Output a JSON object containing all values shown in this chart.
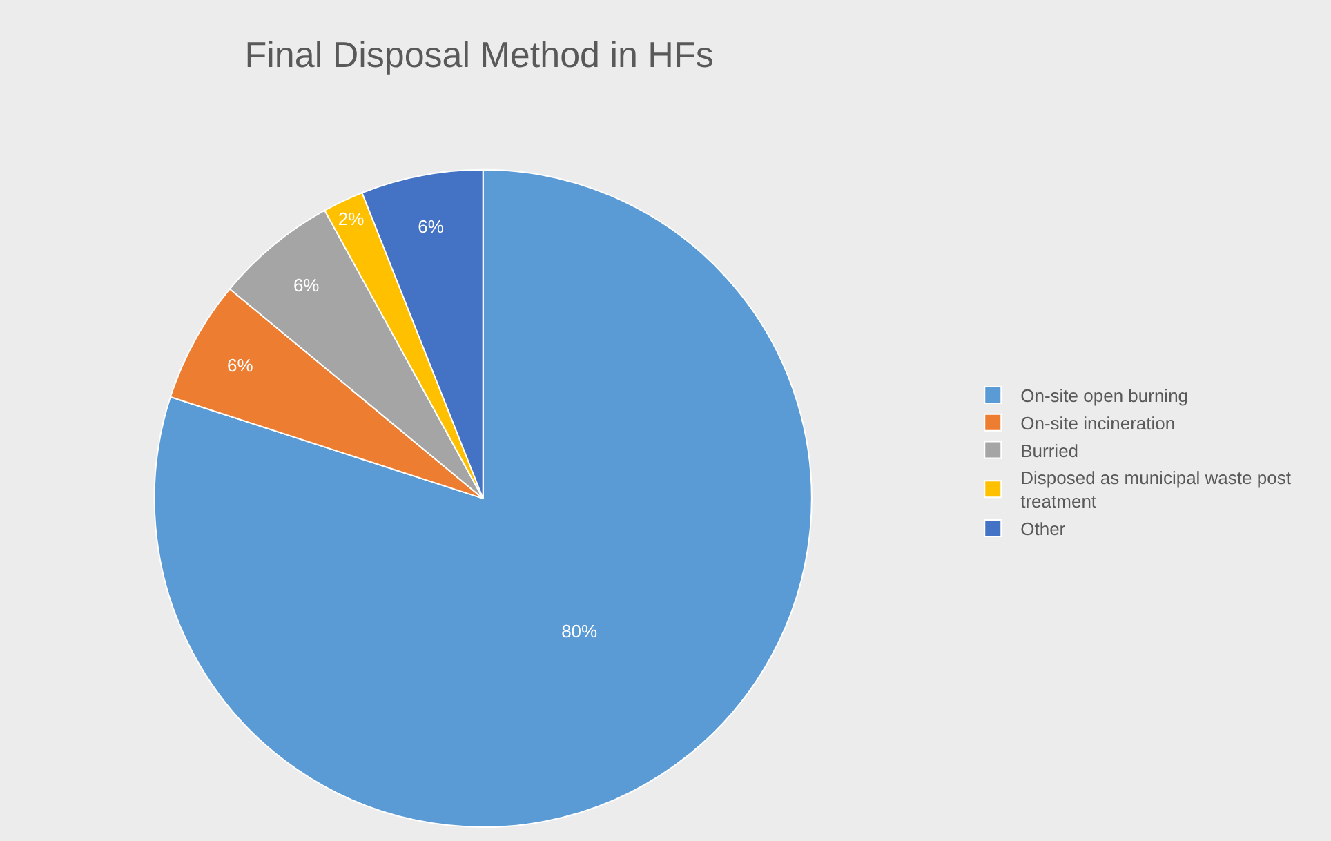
{
  "chart_data": {
    "type": "pie",
    "title": "Final Disposal Method in HFs",
    "categories": [
      "On-site open burning",
      "On-site incineration",
      "Burried",
      "Disposed as municipal waste post treatment",
      "Other"
    ],
    "values": [
      80,
      6,
      6,
      2,
      6
    ],
    "colors": [
      "#5b9bd5",
      "#ed7d31",
      "#a5a5a5",
      "#ffc000",
      "#4472c4"
    ],
    "value_labels": [
      "80%",
      "6%",
      "6%",
      "2%",
      "6%"
    ],
    "legend": "right"
  }
}
